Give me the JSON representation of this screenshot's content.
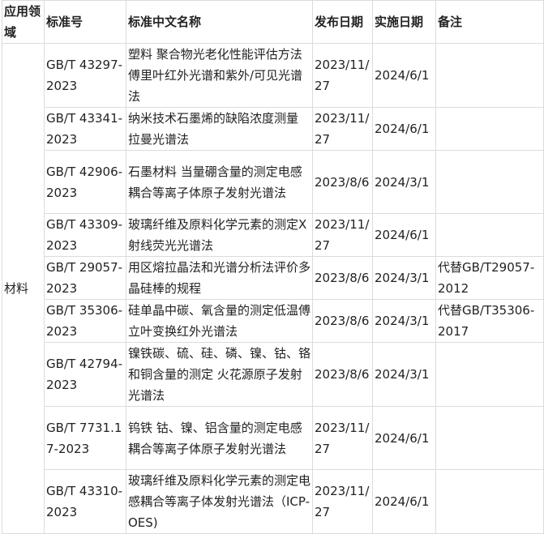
{
  "headers": [
    "应用领域",
    "标准号",
    "标准中文名称",
    "发布日期",
    "实施日期",
    "备注"
  ],
  "category": "材料",
  "rows": [
    {
      "code": "GB/T 43297-2023",
      "name": "塑料 聚合物光老化性能评估方法傅里叶红外光谱和紫外/可见光谱法",
      "published": "2023/11/27",
      "effective": "2024/6/1",
      "note": ""
    },
    {
      "code": "GB/T 43341-2023",
      "name": "纳米技术石墨烯的缺陷浓度测量 拉曼光谱法",
      "published": "2023/11/27",
      "effective": "2024/6/1",
      "note": ""
    },
    {
      "code": "GB/T 42906-2023",
      "name": "石墨材料 当量硼含量的测定电感耦合等离子体原子发射光谱法",
      "published": "2023/8/6",
      "effective": "2024/3/1",
      "note": ""
    },
    {
      "code": "GB/T 43309-2023",
      "name": "玻璃纤维及原料化学元素的测定X射线荧光光谱法",
      "published": "2023/11/27",
      "effective": "2024/6/1",
      "note": ""
    },
    {
      "code": "GB/T 29057-2023",
      "name": "用区熔拉晶法和光谱分析法评价多晶硅棒的规程",
      "published": "2023/8/6",
      "effective": "2024/3/1",
      "note": "代替GB/T29057-2012"
    },
    {
      "code": "GB/T 35306-2023",
      "name": "硅单晶中碳、氧含量的测定低温傅立叶变换红外光谱法",
      "published": "2023/8/6",
      "effective": "2024/3/1",
      "note": "代替GB/T35306-2017"
    },
    {
      "code": "GB/T 42794-2023",
      "name": "镍铁碳、硫、硅、磷、镍、钴、铬和铜含量的测定 火花源原子发射光谱法",
      "published": "2023/8/6",
      "effective": "2024/3/1",
      "note": ""
    },
    {
      "code": "GB/T 7731.17-2023",
      "name": "钨铁 钴、镍、铝含量的测定电感耦合等离子体原子发射光谱法",
      "published": "2023/11/27",
      "effective": "2024/6/1",
      "note": ""
    },
    {
      "code": "GB/T 43310-2023",
      "name": "玻璃纤维及原料化学元素的测定电感耦合等离子体发射光谱法（ICP-OES)",
      "published": "2023/11/27",
      "effective": "2024/6/1",
      "note": ""
    }
  ]
}
